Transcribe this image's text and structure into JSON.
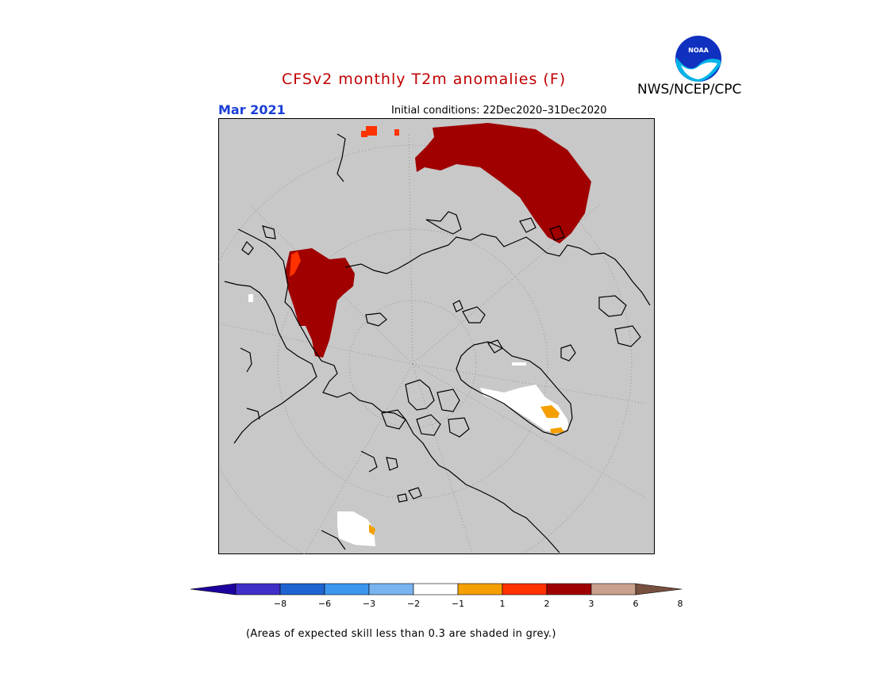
{
  "header": {
    "title": "CFSv2 monthly T2m anomalies (F)",
    "agency": "NWS/NCEP/CPC",
    "month": "Mar 2021",
    "initial_conditions": "Initial conditions: 22Dec2020–31Dec2020",
    "logo_text": "NOAA"
  },
  "map": {
    "projection": "north-polar-stereographic",
    "background_color": "#c8c8c8",
    "anomaly_regions": [
      {
        "region": "Siberia / northern Russia",
        "category": "3 to 6",
        "color": "#a00000"
      },
      {
        "region": "Western Russia / Barents coast",
        "category": "3 to 6",
        "color": "#a00000"
      },
      {
        "region": "Greenland",
        "category": "-1 to 1",
        "color": "#ffffff"
      },
      {
        "region": "Greenland southeast",
        "category": "1 to 2",
        "color": "#f5a000"
      },
      {
        "region": "Southern North America",
        "category": "-1 to 1",
        "color": "#ffffff"
      }
    ]
  },
  "colorbar": {
    "colors": [
      "#1e00a0",
      "#4030c8",
      "#1e64d2",
      "#3c96f0",
      "#78b4f0",
      "#ffffff",
      "#f5a000",
      "#ff3200",
      "#a00000",
      "#c8a08c",
      "#785040"
    ],
    "tick_labels": [
      "−8",
      "−6",
      "−3",
      "−2",
      "−1",
      "1",
      "2",
      "3",
      "6",
      "8"
    ]
  },
  "footnote": "(Areas of expected skill less than 0.3 are shaded in grey.)"
}
